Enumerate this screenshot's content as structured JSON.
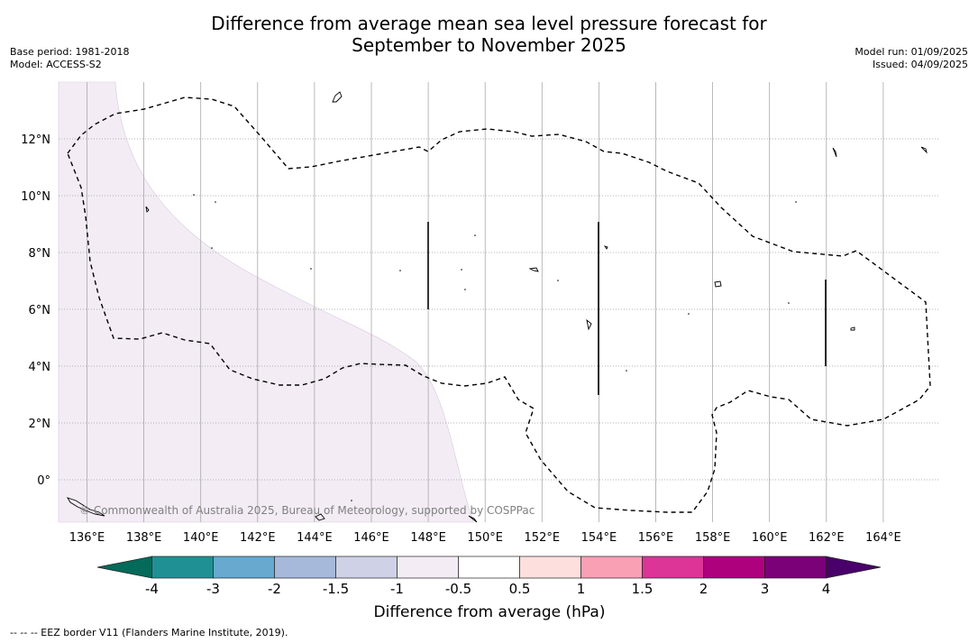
{
  "title": {
    "line1": "Difference from average mean sea level pressure forecast for",
    "line2": "September to November 2025"
  },
  "meta_left": {
    "base_period": "Base period: 1981-2018",
    "model": "Model: ACCESS-S2"
  },
  "meta_right": {
    "model_run": "Model run: 01/09/2025",
    "issued": "Issued: 04/09/2025"
  },
  "map": {
    "lon_range": [
      135,
      166
    ],
    "lat_range": [
      -1.5,
      14
    ],
    "lon_ticks": [
      "136°E",
      "138°E",
      "140°E",
      "142°E",
      "144°E",
      "146°E",
      "148°E",
      "150°E",
      "152°E",
      "154°E",
      "156°E",
      "158°E",
      "160°E",
      "162°E",
      "164°E"
    ],
    "lat_ticks": [
      "12°N",
      "10°N",
      "8°N",
      "6°N",
      "4°N",
      "2°N",
      "0°"
    ],
    "anomaly_shading": {
      "range_hpa": "-1 to -0.5",
      "color": "#f3ecf5",
      "region": "western"
    },
    "eez_border_style": "dashed",
    "copyright": "© Commonwealth of Australia 2025, Bureau of Meteorology, supported by COSPPac"
  },
  "colorbar": {
    "title": "Difference from average (hPa)",
    "labels": [
      "-4",
      "-3",
      "-2",
      "-1.5",
      "-1",
      "-0.5",
      "0.5",
      "1",
      "1.5",
      "2",
      "3",
      "4"
    ],
    "colors": [
      "#1f9195",
      "#67a9cf",
      "#a6b9db",
      "#cfd1e6",
      "#f3ecf5",
      "#ffffff",
      "#fde0dd",
      "#f9a0b5",
      "#dd3497",
      "#ae017e",
      "#7a0177"
    ],
    "under_color": "#046a5a",
    "over_color": "#49006a"
  },
  "footnote": "--  --  -- EEZ border V11 (Flanders Marine Institute, 2019)."
}
